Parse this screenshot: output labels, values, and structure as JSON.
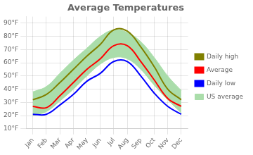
{
  "chart_data": {
    "type": "line",
    "title": "Average Temperatures",
    "categories": [
      "Jan",
      "Feb",
      "Mar",
      "Apr",
      "May",
      "Jun",
      "Jul",
      "Aug",
      "Sep",
      "Oct",
      "Nov",
      "Dec"
    ],
    "series": [
      {
        "name": "Daily high",
        "color": "#808000",
        "values": [
          32,
          36,
          45,
          55,
          65,
          74,
          85,
          84,
          72,
          57,
          40,
          32
        ]
      },
      {
        "name": "Average",
        "color": "#FF0000",
        "values": [
          27,
          26,
          35,
          45,
          55,
          63,
          73,
          73,
          61,
          47,
          33,
          27
        ]
      },
      {
        "name": "Daily low",
        "color": "#0000FF",
        "values": [
          21,
          21,
          28,
          36,
          46,
          52,
          61,
          61,
          50,
          37,
          27,
          21
        ]
      },
      {
        "name": "US average",
        "type": "band",
        "color": "#AADDAA",
        "high": [
          38,
          42,
          52,
          62,
          71,
          80,
          85,
          83,
          76,
          64,
          50,
          39
        ],
        "low": [
          20,
          23,
          31,
          40,
          50,
          59,
          64,
          63,
          55,
          43,
          32,
          22
        ]
      }
    ],
    "ylim": [
      10,
      95
    ],
    "yticks": [
      {
        "value": 10,
        "label": "10°F"
      },
      {
        "value": 20,
        "label": "20°F"
      },
      {
        "value": 30,
        "label": "30°F"
      },
      {
        "value": 40,
        "label": "40°F"
      },
      {
        "value": 50,
        "label": "50°F"
      },
      {
        "value": 60,
        "label": "60°F"
      },
      {
        "value": 70,
        "label": "70°F"
      },
      {
        "value": 80,
        "label": "80°F"
      },
      {
        "value": 90,
        "label": "90°F"
      }
    ],
    "grid": true,
    "legend": "right"
  }
}
